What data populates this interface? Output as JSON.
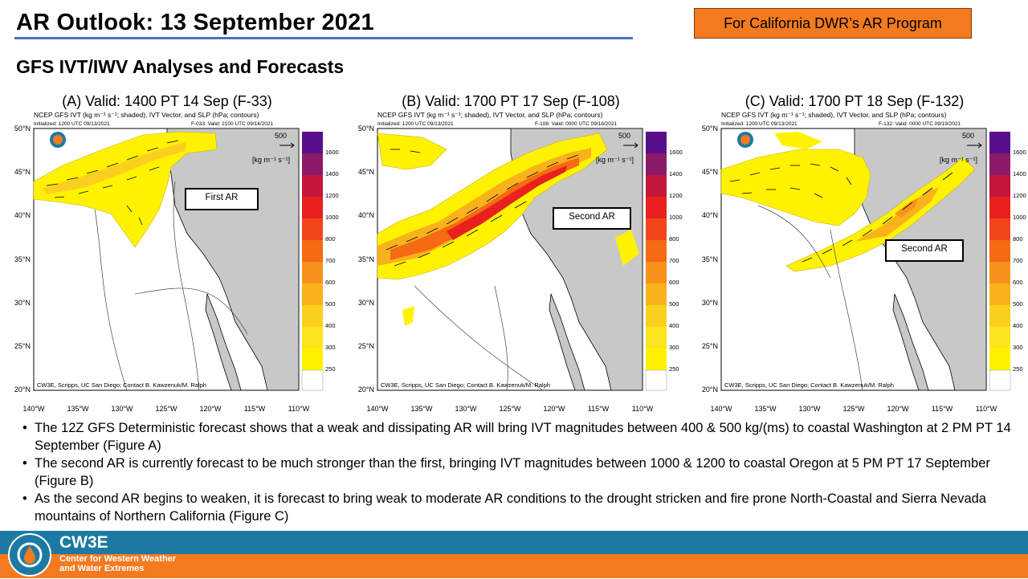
{
  "slide": {
    "title": "AR Outlook: 13 September 2021",
    "badge": "For California DWR’s AR Program",
    "subtitle": "GFS IVT/IWV Analyses and Forecasts"
  },
  "panels": [
    {
      "valid_label": "(A) Valid:  1400 PT 14 Sep (F-33)",
      "header1": "NCEP GFS IVT (kg m⁻¹ s⁻¹; shaded), IVT Vector, and SLP (hPa; contours)",
      "init": "Initialized: 1200 UTC 09/13/2021",
      "fhr": "F-033: Valid: 2100 UTC 09/14/2021",
      "ar_label": "First AR"
    },
    {
      "valid_label": "(B) Valid:  1700 PT 17 Sep (F-108)",
      "header1": "NCEP GFS IVT (kg m⁻¹ s⁻¹; shaded), IVT Vector, and SLP (hPa; contours)",
      "init": "Initialized: 1200 UTC 09/13/2021",
      "fhr": "F-108: Valid: 0000 UTC 09/18/2021",
      "ar_label": "Second AR"
    },
    {
      "valid_label": "(C) Valid:  1700 PT 18 Sep (F-132)",
      "header1": "NCEP GFS IVT (kg m⁻¹ s⁻¹; shaded), IVT Vector, and SLP (hPa; contours)",
      "init": "Initialized: 1200 UTC 09/13/2021",
      "fhr": "F-132: Valid: 0000 UTC 09/19/2021",
      "ar_label": "Second AR"
    }
  ],
  "map": {
    "lat_labels": [
      "50°N",
      "45°N",
      "40°N",
      "35°N",
      "30°N",
      "25°N",
      "20°N"
    ],
    "lon_labels": [
      "140°W",
      "135°W",
      "130°W",
      "125°W",
      "120°W",
      "115°W",
      "110°W"
    ],
    "colorbar_levels": [
      "1600",
      "1400",
      "1200",
      "1000",
      "800",
      "700",
      "600",
      "500",
      "400",
      "300",
      "250"
    ],
    "colorbar_colors": [
      "#5a0f8a",
      "#8b1a6a",
      "#c4163a",
      "#e8201e",
      "#f2461a",
      "#f56a12",
      "#f7921a",
      "#f9b21c",
      "#fad01e",
      "#fbe51c",
      "#fff200",
      "#ffffff"
    ],
    "vector_scale": "500",
    "vector_unit": "[kg m⁻¹ s⁻¹]",
    "credit": "CW3E, Scripps, UC San Diego; Contact B. Kawzenuk/M. Ralph",
    "logo_text": "Center for Western Weather and Water Extremes"
  },
  "bullets": [
    "The 12Z GFS Deterministic forecast shows that a weak and dissipating AR will bring IVT magnitudes between 400 & 500 kg/(ms) to coastal Washington at 2 PM PT 14 September (Figure A)",
    "The second AR is currently forecast to be much stronger than the first, bringing IVT magnitudes between 1000 & 1200 to coastal Oregon at 5 PM PT 17 September (Figure B)",
    "As the second AR begins to weaken, it is forecast to bring weak to moderate AR conditions to the drought stricken and fire prone North-Coastal and Sierra Nevada mountains of Northern California (Figure C)"
  ],
  "footer": {
    "name": "CW3E",
    "full_name": "Center for Western Weather and Water Extremes"
  }
}
